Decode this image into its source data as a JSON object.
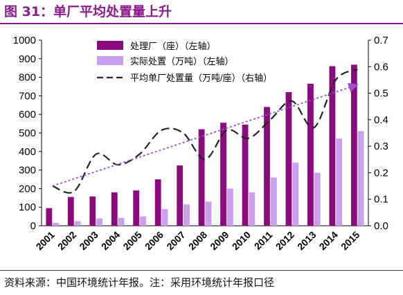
{
  "figure": {
    "title": "图 31：单厂平均处置量上升",
    "source": "资料来源：中国环境统计年报。注：采用环境统计年报口径"
  },
  "colors": {
    "plants_bar": "#8B0A7E",
    "capacity_bar": "#C9A0F0",
    "avg_line": "#222222",
    "trend_line": "#9B4FD0",
    "title": "#8B1A8A"
  },
  "chart_data": {
    "type": "bar",
    "categories": [
      "2001",
      "2002",
      "2003",
      "2004",
      "2005",
      "2006",
      "2007",
      "2008",
      "2009",
      "2010",
      "2011",
      "2012",
      "2013",
      "2014",
      "2015"
    ],
    "series": [
      {
        "name": "处理厂（座）（左轴）",
        "type": "bar",
        "axis": "left",
        "values": [
          95,
          155,
          158,
          180,
          190,
          250,
          325,
          520,
          555,
          545,
          640,
          720,
          765,
          860,
          868
        ]
      },
      {
        "name": "实际处置（万吨）（左轴）",
        "type": "bar",
        "axis": "left",
        "values": [
          15,
          25,
          40,
          42,
          50,
          90,
          115,
          130,
          200,
          180,
          260,
          340,
          285,
          470,
          510
        ]
      },
      {
        "name": "平均单厂处置量（万吨/座）（右轴）",
        "type": "line",
        "style": "dashed",
        "axis": "right",
        "values": [
          0.15,
          0.13,
          0.27,
          0.23,
          0.27,
          0.36,
          0.35,
          0.25,
          0.36,
          0.33,
          0.4,
          0.47,
          0.37,
          0.55,
          0.59
        ]
      }
    ],
    "trendline": {
      "style": "dotted-arrow",
      "axis": "right",
      "from": 0.15,
      "to": 0.53
    },
    "left_axis": {
      "min": 0,
      "max": 1000,
      "ticks": [
        "0",
        "100",
        "200",
        "300",
        "400",
        "500",
        "600",
        "700",
        "800",
        "900",
        "1000"
      ]
    },
    "right_axis": {
      "min": 0,
      "max": 0.7,
      "ticks": [
        "0.0",
        "0.1",
        "0.2",
        "0.3",
        "0.4",
        "0.5",
        "0.6",
        "0.7"
      ]
    },
    "legend_position": "top-left",
    "grid": false
  }
}
